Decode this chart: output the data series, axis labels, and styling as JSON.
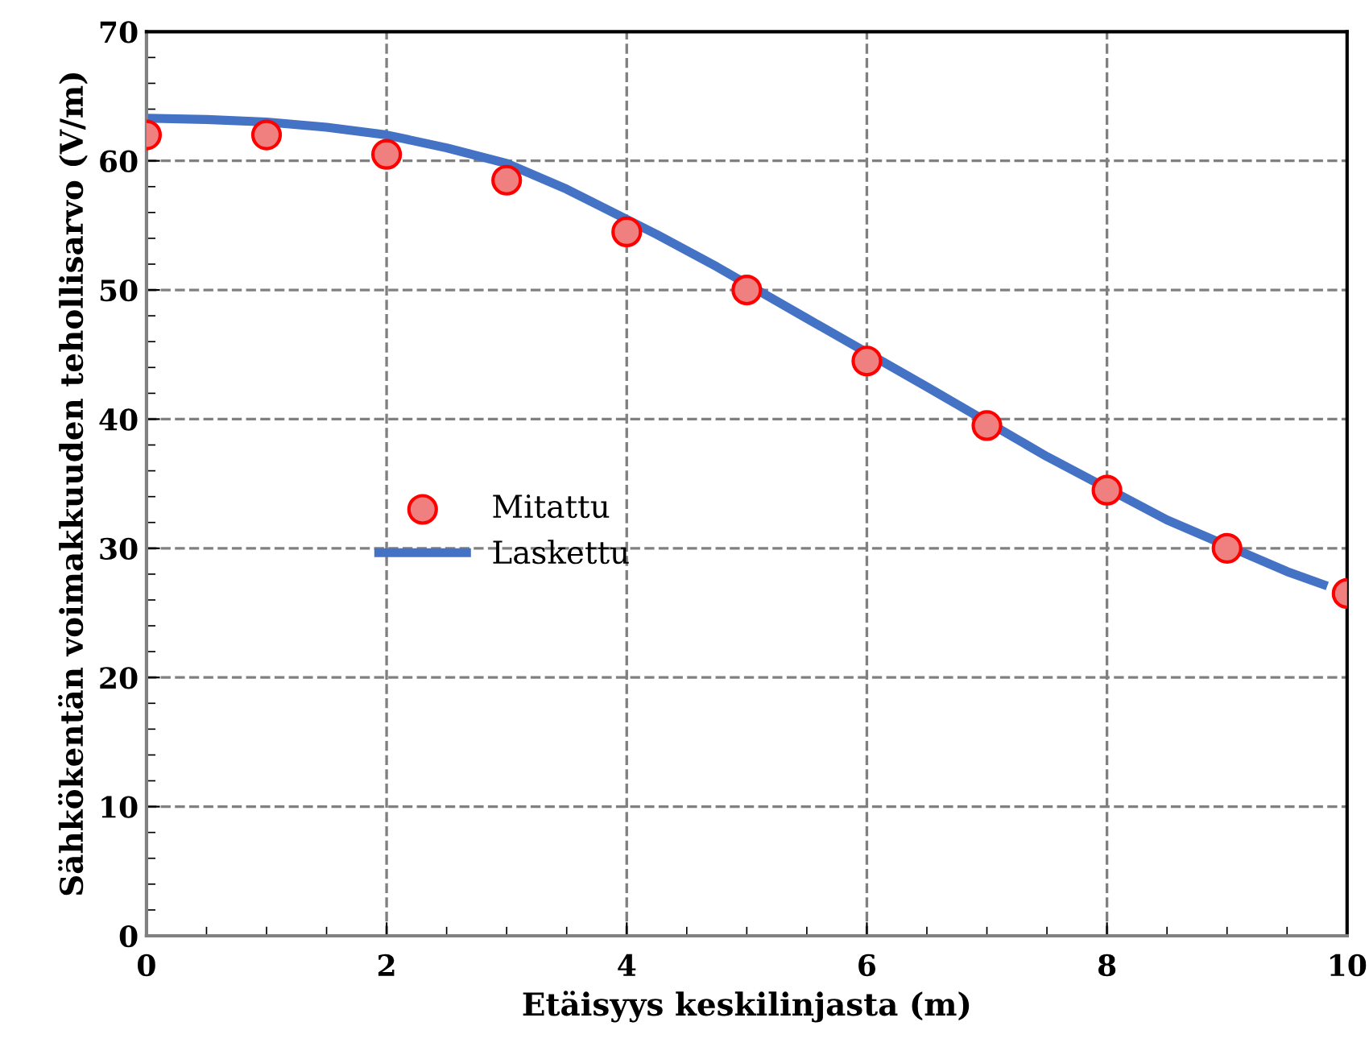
{
  "chart_data": {
    "type": "line",
    "xlabel": "Etäisyys keskilinjasta (m)",
    "ylabel": "Sähkökentän voimakkuuden tehollisarvo (V/m)",
    "xlim": [
      0,
      10
    ],
    "xticks": [
      0,
      2,
      4,
      6,
      8,
      10
    ],
    "ylim": [
      0,
      70
    ],
    "yticks": [
      0,
      10,
      20,
      30,
      40,
      50,
      60,
      70
    ],
    "grid": true,
    "legend": "left",
    "series": [
      {
        "name": "Mitattu",
        "type": "scatter",
        "color": "#f08080",
        "marker": "circle",
        "x": [
          0,
          1,
          2,
          3,
          4,
          5,
          6,
          7,
          8,
          9,
          10
        ],
        "values": [
          62,
          62,
          60.5,
          58.5,
          54.5,
          50,
          44.5,
          39.5,
          34.5,
          30,
          26.5
        ]
      },
      {
        "name": "Laskettu",
        "color": "#4472c4",
        "marker": "none",
        "line_style": "solid",
        "x": [
          0,
          0.5,
          1,
          1.5,
          2,
          2.5,
          3,
          3.5,
          4.25,
          4.75,
          5.5,
          6.5,
          7.5,
          8.5,
          9.5,
          9.8
        ],
        "values": [
          63.3,
          63.2,
          63,
          62.6,
          62,
          61,
          59.8,
          57.8,
          54.3,
          51.8,
          47.8,
          42.5,
          37.1,
          32.2,
          28.2,
          27.2
        ]
      }
    ]
  }
}
